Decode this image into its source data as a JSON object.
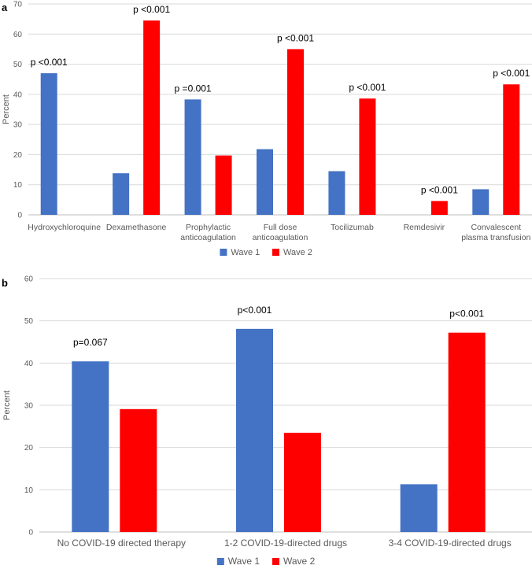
{
  "chart_data": [
    {
      "panel": "a",
      "type": "bar",
      "ylabel": "Percent",
      "ylim": [
        0,
        70
      ],
      "yticks": [
        0,
        10,
        20,
        30,
        40,
        50,
        60,
        70
      ],
      "grid": true,
      "legend_position": "bottom",
      "categories": [
        [
          "Hydroxychloroquine"
        ],
        [
          "Dexamethasone"
        ],
        [
          "Prophylactic",
          "anticoagulation"
        ],
        [
          "Full dose",
          "anticoagulation"
        ],
        [
          "Tocilizumab"
        ],
        [
          "Remdesivir"
        ],
        [
          "Convalescent",
          "plasma transfusion"
        ]
      ],
      "series": [
        {
          "name": "Wave 1",
          "color": "#4472C4",
          "values": [
            47,
            13.8,
            38.3,
            21.8,
            14.5,
            0,
            8.5
          ]
        },
        {
          "name": "Wave 2",
          "color": "#FF0000",
          "values": [
            0,
            64.5,
            19.7,
            55,
            38.6,
            4.6,
            43.3
          ]
        }
      ],
      "annotations": [
        "p <0.001",
        "p <0.001",
        "p =0.001",
        "p <0.001",
        "p <0.001",
        "p <0.001",
        "p <0.001"
      ]
    },
    {
      "panel": "b",
      "type": "bar",
      "ylabel": "Percent",
      "ylim": [
        0,
        60
      ],
      "yticks": [
        0,
        10,
        20,
        30,
        40,
        50,
        60
      ],
      "grid": true,
      "legend_position": "bottom",
      "categories": [
        [
          "No COVID-19 directed therapy"
        ],
        [
          "1-2 COVID-19-directed drugs"
        ],
        [
          "3-4 COVID-19-directed drugs"
        ]
      ],
      "series": [
        {
          "name": "Wave 1",
          "color": "#4472C4",
          "values": [
            40.4,
            48.1,
            11.3
          ]
        },
        {
          "name": "Wave 2",
          "color": "#FF0000",
          "values": [
            29.1,
            23.5,
            47.2
          ]
        }
      ],
      "annotations": [
        "p=0.067",
        "p<0.001",
        "p<0.001"
      ]
    }
  ]
}
